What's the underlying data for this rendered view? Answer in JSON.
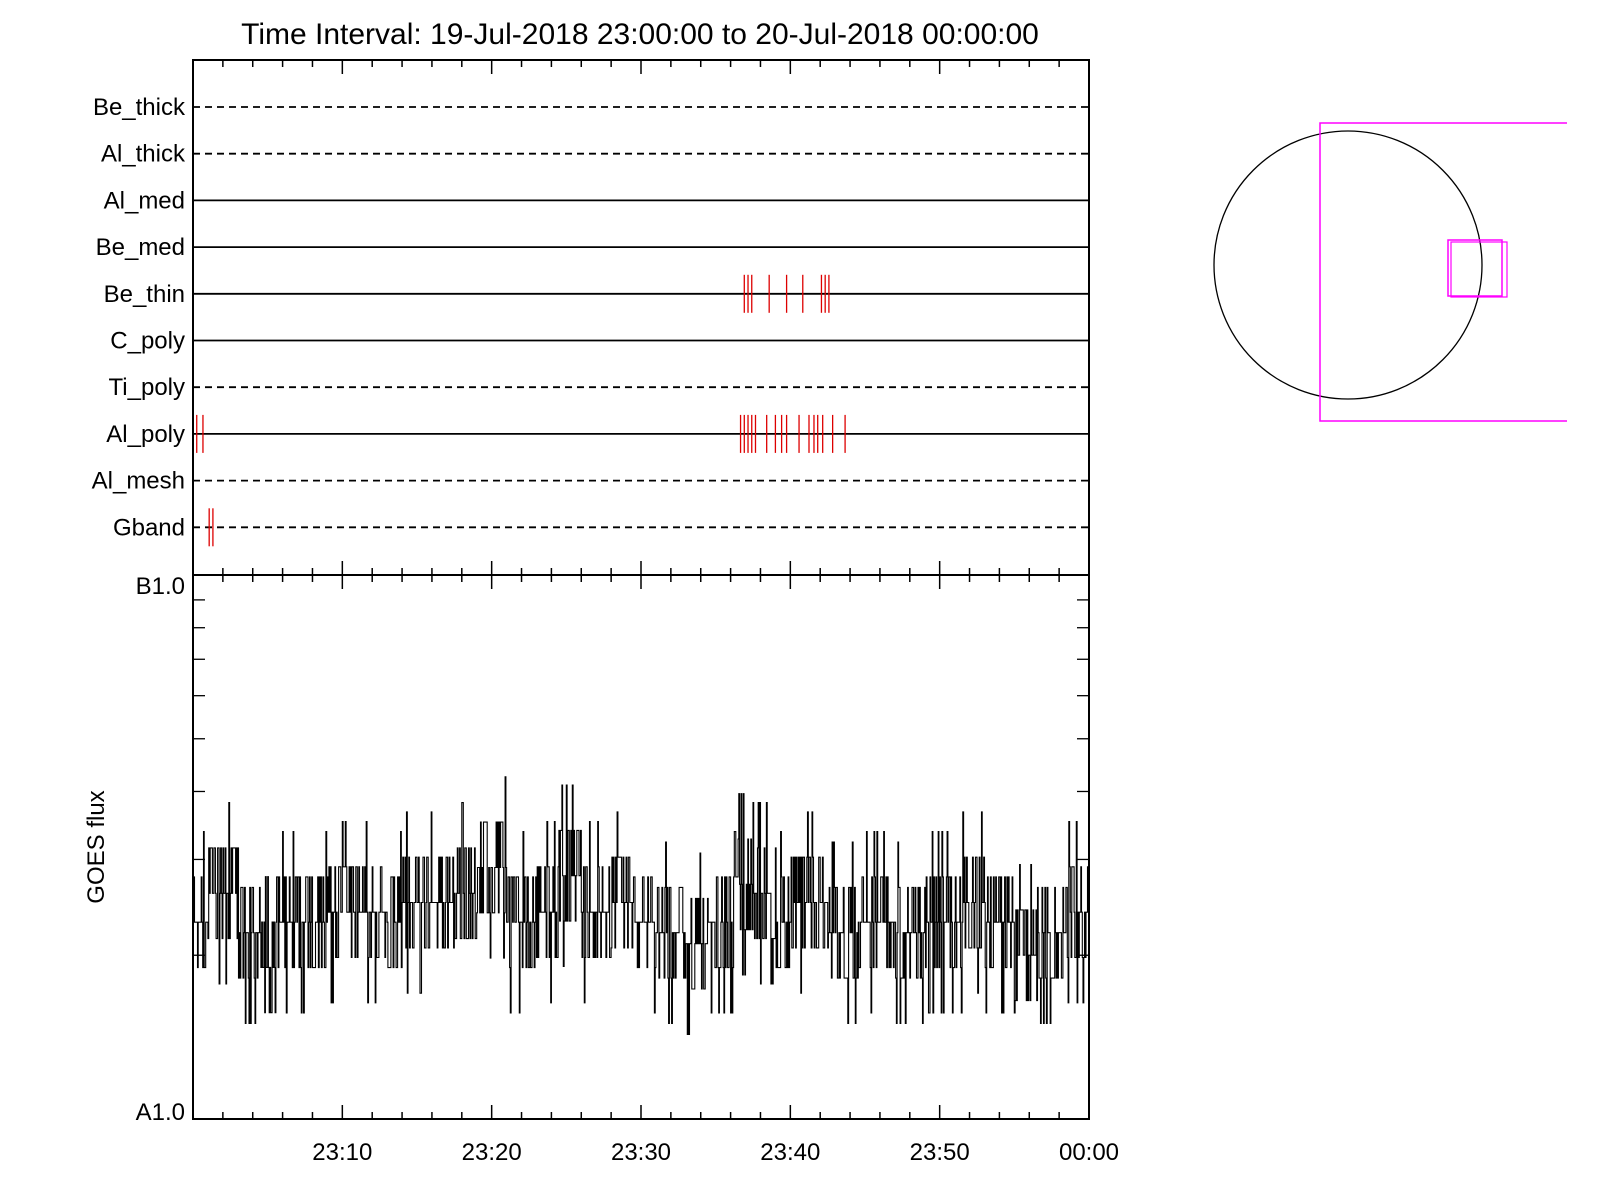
{
  "chart_data": [
    {
      "type": "timeline",
      "title": "Time Interval: 19-Jul-2018 23:00:00 to 20-Jul-2018 00:00:00",
      "x_range": [
        "2018-07-19 23:00:00",
        "2018-07-20 00:00:00"
      ],
      "x_tick_labels": [
        "23:10",
        "23:20",
        "23:30",
        "23:40",
        "23:50",
        "00:00"
      ],
      "event_color": "#dd0000",
      "channels": [
        {
          "name": "Be_thick",
          "line": "dashed",
          "events": []
        },
        {
          "name": "Al_thick",
          "line": "dashed",
          "events": []
        },
        {
          "name": "Al_med",
          "line": "solid",
          "events": []
        },
        {
          "name": "Be_med",
          "line": "solid",
          "events": []
        },
        {
          "name": "Be_thin",
          "line": "solid",
          "events": [
            "23:36:55",
            "23:37:10",
            "23:37:25",
            "23:38:35",
            "23:39:45",
            "23:40:50",
            "23:42:05",
            "23:42:20",
            "23:42:35"
          ]
        },
        {
          "name": "C_poly",
          "line": "solid",
          "events": []
        },
        {
          "name": "Ti_poly",
          "line": "dashed",
          "events": []
        },
        {
          "name": "Al_poly",
          "line": "solid",
          "events": [
            "23:00:15",
            "23:00:40",
            "23:36:40",
            "23:36:55",
            "23:37:10",
            "23:37:25",
            "23:37:40",
            "23:38:25",
            "23:39:00",
            "23:39:25",
            "23:39:45",
            "23:40:35",
            "23:41:15",
            "23:41:35",
            "23:41:50",
            "23:42:10",
            "23:42:50",
            "23:43:40"
          ]
        },
        {
          "name": "Al_mesh",
          "line": "dashed",
          "events": []
        },
        {
          "name": "Gband",
          "line": "dashed",
          "events": [
            "23:01:05",
            "23:01:20"
          ]
        }
      ]
    },
    {
      "type": "line",
      "ylabel": "GOES flux",
      "y_tick_labels": [
        "B1.0",
        "A1.0"
      ],
      "yscale": "log",
      "ylim": [
        1e-08,
        1e-07
      ],
      "x_range_minutes": [
        0,
        60
      ],
      "x_tick_labels": [
        "23:10",
        "23:20",
        "23:30",
        "23:40",
        "23:50",
        "00:00"
      ],
      "line_color": "#000000",
      "levels": [
        {
          "t_min": 0,
          "flux": 2.3e-08
        },
        {
          "t_min": 1,
          "flux": 2.6e-08
        },
        {
          "t_min": 3,
          "flux": 2.2e-08
        },
        {
          "t_min": 4.5,
          "flux": 1.9e-08
        },
        {
          "t_min": 5.5,
          "flux": 2.3e-08
        },
        {
          "t_min": 9,
          "flux": 2.4e-08
        },
        {
          "t_min": 13,
          "flux": 2.3e-08
        },
        {
          "t_min": 14,
          "flux": 2.5e-08
        },
        {
          "t_min": 17.5,
          "flux": 2.6e-08
        },
        {
          "t_min": 19,
          "flux": 2.9e-08
        },
        {
          "t_min": 21,
          "flux": 2.3e-08
        },
        {
          "t_min": 23,
          "flux": 2.4e-08
        },
        {
          "t_min": 24.5,
          "flux": 2.8e-08
        },
        {
          "t_min": 26,
          "flux": 2.4e-08
        },
        {
          "t_min": 28,
          "flux": 2.5e-08
        },
        {
          "t_min": 29.5,
          "flux": 2.3e-08
        },
        {
          "t_min": 31,
          "flux": 2.2e-08
        },
        {
          "t_min": 33,
          "flux": 2.1e-08
        },
        {
          "t_min": 34.5,
          "flux": 2.3e-08
        },
        {
          "t_min": 36.5,
          "flux": 2.7e-08
        },
        {
          "t_min": 37.5,
          "flux": 2.6e-08
        },
        {
          "t_min": 39,
          "flux": 2.3e-08
        },
        {
          "t_min": 40,
          "flux": 2.5e-08
        },
        {
          "t_min": 42.5,
          "flux": 2.2e-08
        },
        {
          "t_min": 44.5,
          "flux": 2.3e-08
        },
        {
          "t_min": 47,
          "flux": 2.2e-08
        },
        {
          "t_min": 49,
          "flux": 2.3e-08
        },
        {
          "t_min": 51.5,
          "flux": 2.5e-08
        },
        {
          "t_min": 53,
          "flux": 2.3e-08
        },
        {
          "t_min": 55,
          "flux": 2e-08
        },
        {
          "t_min": 56.5,
          "flux": 2.2e-08
        },
        {
          "t_min": 58.5,
          "flux": 2.4e-08
        }
      ]
    }
  ],
  "inset": {
    "disk_color": "#000000",
    "fov_color": "#ff00ff"
  }
}
